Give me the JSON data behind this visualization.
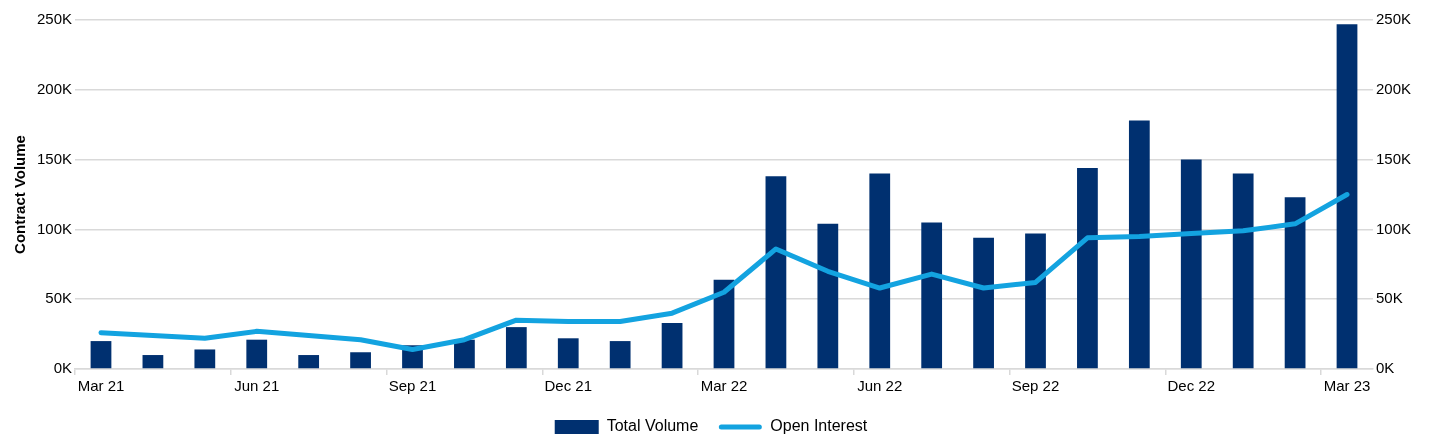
{
  "chart_data": {
    "type": "bar",
    "ylabel": "Contract Volume",
    "categories": [
      "Mar 21",
      null,
      null,
      "Jun 21",
      null,
      null,
      "Sep 21",
      null,
      null,
      "Dec 21",
      null,
      null,
      "Mar 22",
      null,
      null,
      "Jun 22",
      null,
      null,
      "Sep 22",
      null,
      null,
      "Dec 22",
      null,
      null,
      "Mar 23"
    ],
    "series": [
      {
        "name": "Total Volume",
        "color": "#003070",
        "values": [
          20,
          10,
          14,
          21,
          10,
          12,
          17,
          21,
          30,
          22,
          20,
          33,
          64,
          138,
          104,
          140,
          105,
          94,
          97,
          144,
          178,
          150,
          140,
          123,
          247
        ]
      },
      {
        "name": "Open Interest",
        "type": "line",
        "color": "#13a3e0",
        "values": [
          26,
          24,
          22,
          27,
          24,
          21,
          14,
          21,
          35,
          34,
          34,
          40,
          55,
          86,
          70,
          58,
          68,
          58,
          62,
          94,
          95,
          97,
          99,
          104,
          125
        ]
      }
    ],
    "ylim": [
      0,
      250
    ],
    "yticks": [
      {
        "value": 0,
        "label": "0K"
      },
      {
        "value": 50,
        "label": "50K"
      },
      {
        "value": 100,
        "label": "100K"
      },
      {
        "value": 150,
        "label": "150K"
      },
      {
        "value": 200,
        "label": "200K"
      },
      {
        "value": 250,
        "label": "250K"
      }
    ],
    "y2lim": [
      0,
      250
    ],
    "y2ticks": [
      {
        "value": 0,
        "label": "0K"
      },
      {
        "value": 50,
        "label": "50K"
      },
      {
        "value": 100,
        "label": "100K"
      },
      {
        "value": 150,
        "label": "150K"
      },
      {
        "value": 200,
        "label": "200K"
      },
      {
        "value": 250,
        "label": "250K"
      }
    ],
    "grid": "y",
    "legend": "bottom",
    "marker": "none"
  }
}
